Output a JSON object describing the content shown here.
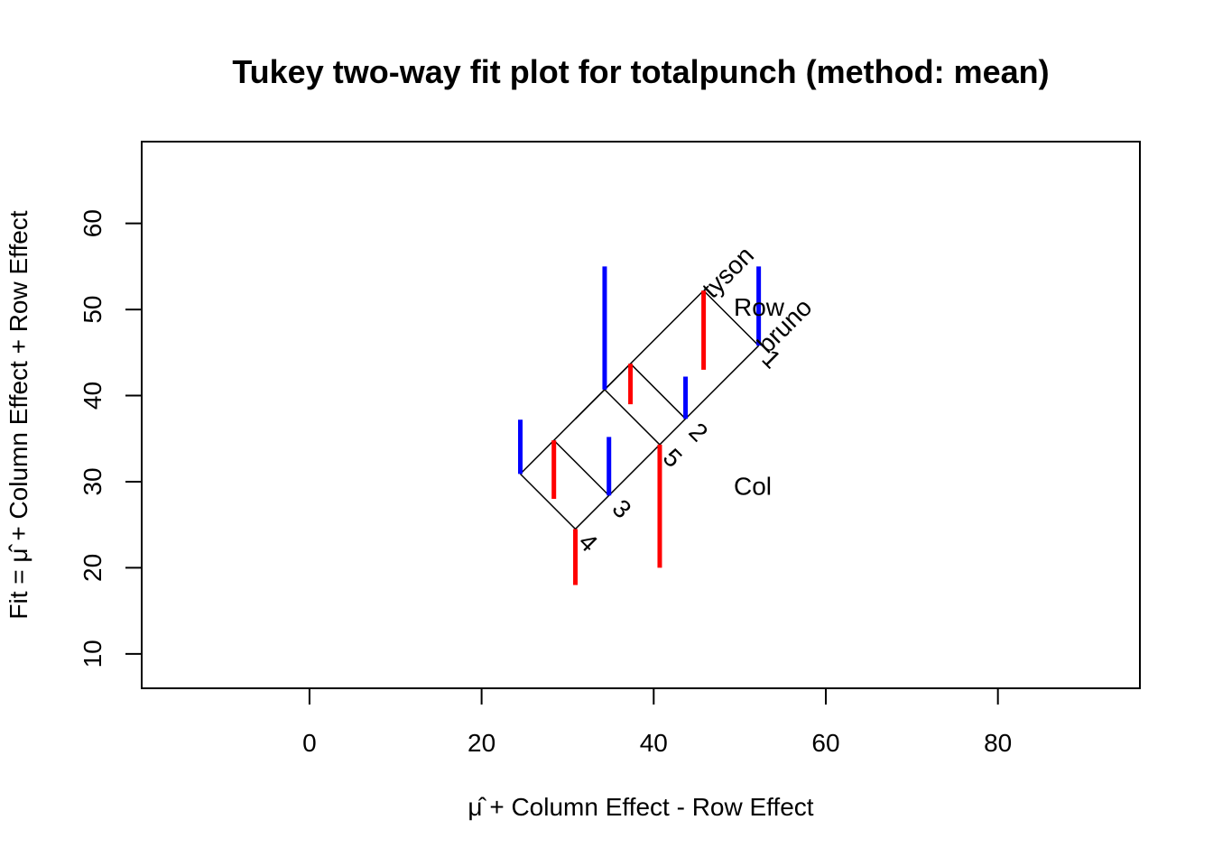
{
  "chart_data": {
    "type": "two-way-fit",
    "title": "Tukey two-way fit plot for totalpunch (method: mean)",
    "xlabel": "μ̂ + Column Effect - Row Effect",
    "ylabel": "Fit = μ̂ + Column Effect + Row Effect",
    "xlim": [
      -19.5,
      96.5
    ],
    "ylim": [
      6,
      69.5
    ],
    "x_ticks": [
      0,
      20,
      40,
      60,
      80
    ],
    "y_ticks": [
      10,
      20,
      30,
      40,
      50,
      60
    ],
    "row_labels": [
      {
        "label": "tyson",
        "x": 45.8,
        "y": 52.2
      },
      {
        "label": "bruno",
        "x": 52.2,
        "y": 45.8
      }
    ],
    "col_labels": [
      {
        "label": "1",
        "x": 52.2,
        "y": 45.8
      },
      {
        "label": "2",
        "x": 43.7,
        "y": 37.3
      },
      {
        "label": "5",
        "x": 40.7,
        "y": 34.3
      },
      {
        "label": "3",
        "x": 34.8,
        "y": 28.4
      },
      {
        "label": "4",
        "x": 30.9,
        "y": 24.5
      }
    ],
    "grid_lines": [
      {
        "from": [
          45.8,
          52.2
        ],
        "to": [
          30.9,
          37.3
        ]
      },
      {
        "from": [
          52.2,
          45.8
        ],
        "to": [
          30.9,
          24.5
        ]
      },
      {
        "from": [
          30.9,
          37.3
        ],
        "to": [
          24.5,
          30.9
        ]
      },
      {
        "from": [
          30.9,
          24.5
        ],
        "to": [
          24.5,
          30.9
        ]
      },
      {
        "from": [
          30.9,
          37.3
        ],
        "to": [
          37.3,
          43.7
        ]
      },
      {
        "from": [
          45.8,
          52.2
        ],
        "to": [
          52.2,
          45.8
        ]
      },
      {
        "from": [
          28.4,
          34.8
        ],
        "to": [
          34.8,
          28.4
        ]
      },
      {
        "from": [
          34.3,
          40.7
        ],
        "to": [
          40.7,
          34.3
        ]
      },
      {
        "from": [
          37.3,
          43.7
        ],
        "to": [
          43.7,
          37.3
        ]
      }
    ],
    "residuals": [
      {
        "x": 24.5,
        "y_fit": 30.9,
        "y_obs": 37.2,
        "color": "#0000ff"
      },
      {
        "x": 28.4,
        "y_fit": 34.8,
        "y_obs": 28.0,
        "color": "#ff0000"
      },
      {
        "x": 30.9,
        "y_fit": 24.5,
        "y_obs": 18.0,
        "color": "#ff0000"
      },
      {
        "x": 34.3,
        "y_fit": 40.7,
        "y_obs": 55.0,
        "color": "#0000ff"
      },
      {
        "x": 34.8,
        "y_fit": 28.4,
        "y_obs": 35.2,
        "color": "#0000ff"
      },
      {
        "x": 37.3,
        "y_fit": 43.7,
        "y_obs": 39.0,
        "color": "#ff0000"
      },
      {
        "x": 40.7,
        "y_fit": 34.3,
        "y_obs": 20.0,
        "color": "#ff0000"
      },
      {
        "x": 43.7,
        "y_fit": 37.3,
        "y_obs": 42.2,
        "color": "#0000ff"
      },
      {
        "x": 45.8,
        "y_fit": 52.2,
        "y_obs": 43.0,
        "color": "#ff0000"
      },
      {
        "x": 52.2,
        "y_fit": 45.8,
        "y_obs": 55.0,
        "color": "#0000ff"
      }
    ],
    "annotations": [
      {
        "text": "Row",
        "x": 49.3,
        "y": 50.3
      },
      {
        "text": "Col",
        "x": 49.3,
        "y": 29.5
      }
    ]
  }
}
